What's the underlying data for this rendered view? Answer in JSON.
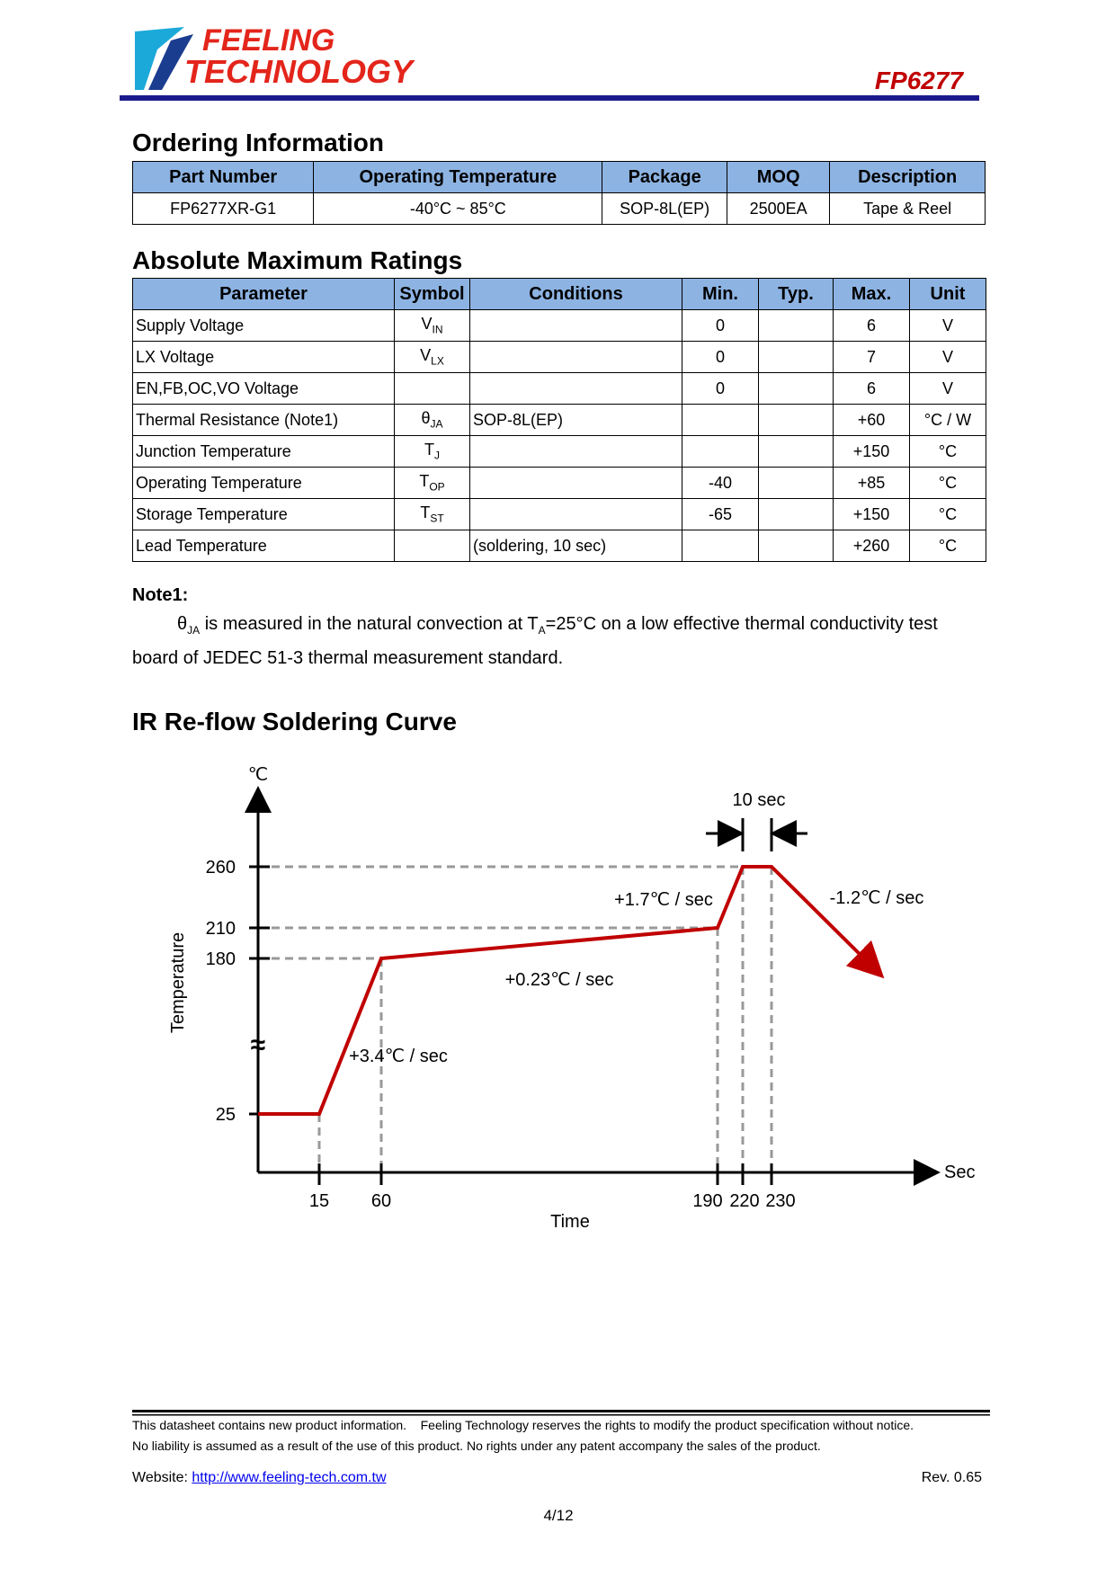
{
  "header": {
    "logo_line1": "FEELING",
    "logo_line2": "TECHNOLOGY",
    "part": "FP6277"
  },
  "ordering": {
    "title": "Ordering Information",
    "columns": [
      "Part Number",
      "Operating Temperature",
      "Package",
      "MOQ",
      "Description"
    ],
    "rows": [
      [
        "FP6277XR-G1",
        "-40°C ~ 85°C",
        "SOP-8L(EP)",
        "2500EA",
        "Tape & Reel"
      ]
    ]
  },
  "ratings": {
    "title": "Absolute Maximum Ratings",
    "columns": [
      "Parameter",
      "Symbol",
      "Conditions",
      "Min.",
      "Typ.",
      "Max.",
      "Unit"
    ],
    "rows": [
      [
        "Supply Voltage",
        {
          "main": "V",
          "sub": "IN"
        },
        "",
        "0",
        "",
        "6",
        "V"
      ],
      [
        "LX Voltage",
        {
          "main": "V",
          "sub": "LX"
        },
        "",
        "0",
        "",
        "7",
        "V"
      ],
      [
        "EN,FB,OC,VO Voltage",
        "",
        "",
        "0",
        "",
        "6",
        "V"
      ],
      [
        "Thermal Resistance (Note1)",
        {
          "main": "θ",
          "sub": "JA"
        },
        "SOP-8L(EP)",
        "",
        "",
        "+60",
        "°C / W"
      ],
      [
        "Junction Temperature",
        {
          "main": "T",
          "sub": "J"
        },
        "",
        "",
        "",
        "+150",
        "°C"
      ],
      [
        "Operating Temperature",
        {
          "main": "T",
          "sub": "OP"
        },
        "",
        "-40",
        "",
        "+85",
        "°C"
      ],
      [
        "Storage Temperature",
        {
          "main": "T",
          "sub": "ST"
        },
        "",
        "-65",
        "",
        "+150",
        "°C"
      ],
      [
        "Lead Temperature",
        "",
        "(soldering, 10 sec)",
        "",
        "",
        "+260",
        "°C"
      ]
    ]
  },
  "note": {
    "title": "Note1:",
    "theta": "θ",
    "theta_sub": "JA",
    "text1": " is measured in the natural convection at T",
    "ta_sub": "A",
    "text2": "=25°C on a low effective thermal conductivity test",
    "text3": "board of JEDEC 51-3 thermal measurement standard."
  },
  "reflow": {
    "title": "IR Re-flow Soldering Curve",
    "y_unit": "℃",
    "y_label": "Temperature",
    "x_unit": "Sec",
    "x_label": "Time",
    "yticks": [
      "260",
      "210",
      "180",
      "25"
    ],
    "break": "≈",
    "xticks": [
      "15",
      "60",
      "190",
      "220",
      "230"
    ],
    "window": "10 sec",
    "slopes": [
      "+3.4℃ / sec",
      "+0.23℃ / sec",
      "+1.7℃ / sec",
      "-1.2℃ / sec"
    ]
  },
  "footer": {
    "line1": "This datasheet contains new product information.    Feeling Technology reserves the rights to modify the product specification without notice.",
    "line2": "No liability is assumed as a result of the use of this product. No rights under any patent accompany the sales of the product.",
    "website_label": "Website: ",
    "website": "http://www.feeling-tech.com.tw",
    "rev": "Rev. 0.65",
    "page": "4/12"
  }
}
